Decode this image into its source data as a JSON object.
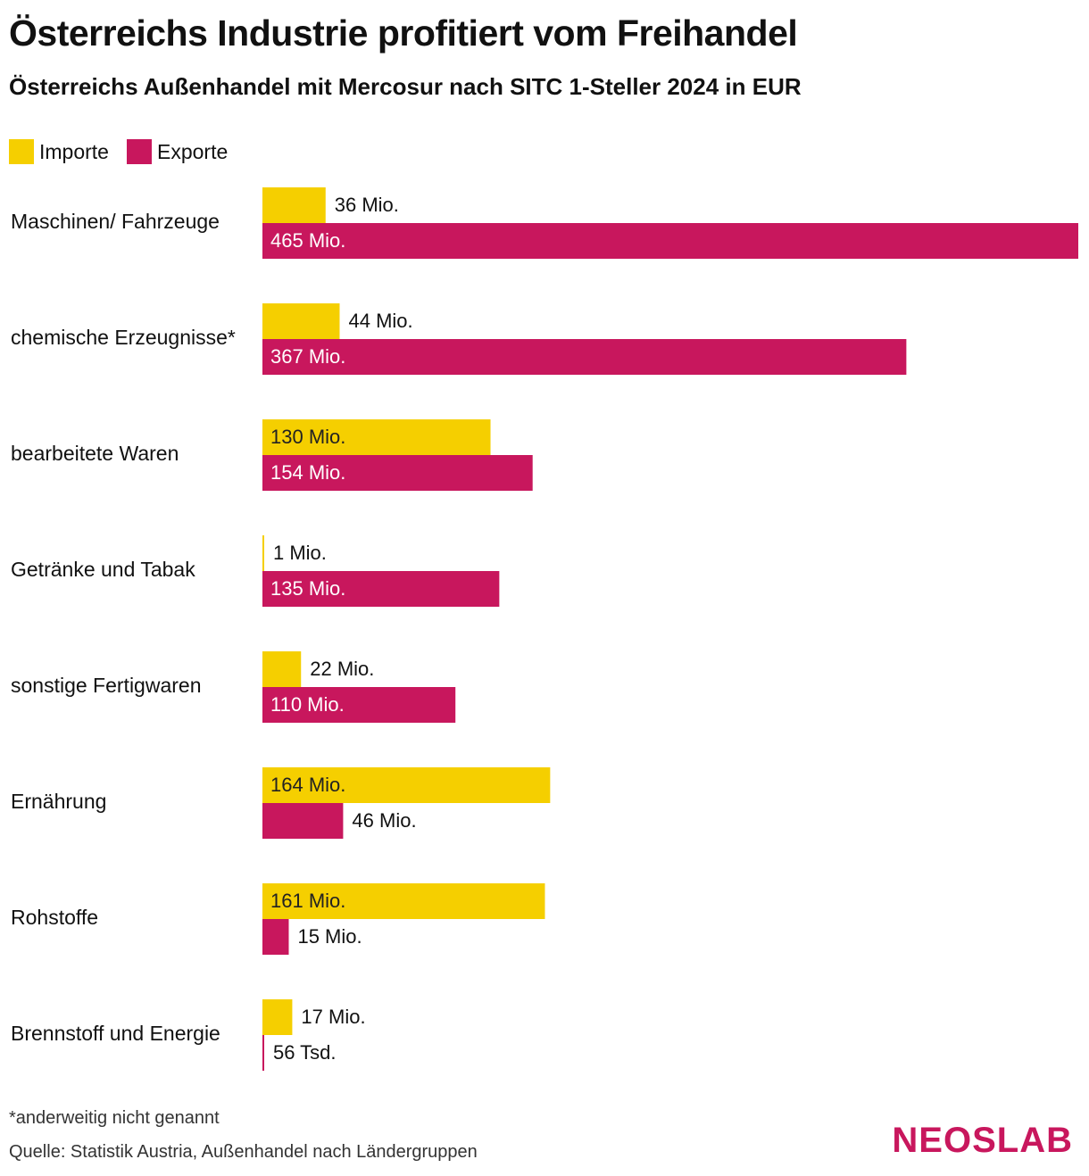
{
  "header": {
    "title": "Österreichs Industrie profitiert vom Freihandel",
    "subtitle": "Österreichs Außenhandel mit Mercosur nach SITC 1-Steller 2024 in EUR"
  },
  "colors": {
    "imports": "#f5cf00",
    "exports": "#c8175d"
  },
  "chart_data": {
    "type": "bar",
    "orientation": "horizontal",
    "title": "Österreichs Außenhandel mit Mercosur nach SITC 1-Steller 2024 in EUR",
    "unit": "Mio. EUR",
    "legend": "top-left",
    "categories": [
      "Maschinen/ Fahrzeuge",
      "chemische Erzeugnisse*",
      "bearbeitete Waren",
      "Getränke und Tabak",
      "sonstige Fertigwaren",
      "Ernährung",
      "Rohstoffe",
      "Brennstoff und Energie"
    ],
    "series": [
      {
        "name": "Importe",
        "values": [
          36,
          44,
          130,
          1,
          22,
          164,
          161,
          17
        ],
        "labels": [
          "36 Mio.",
          "44 Mio.",
          "130 Mio.",
          "1 Mio.",
          "22 Mio.",
          "164 Mio.",
          "161 Mio.",
          "17 Mio."
        ]
      },
      {
        "name": "Exporte",
        "values": [
          465,
          367,
          154,
          135,
          110,
          46,
          15,
          0.056
        ],
        "labels": [
          "465 Mio.",
          "367 Mio.",
          "154 Mio.",
          "135 Mio.",
          "110 Mio.",
          "46 Mio.",
          "15 Mio.",
          "56 Tsd."
        ]
      }
    ],
    "xlim": [
      0,
      465
    ]
  },
  "footer": {
    "footnote": "*anderweitig nicht genannt",
    "source": "Quelle: Statistik Austria, Außenhandel nach Ländergruppen",
    "logo": "NEOSLAB"
  }
}
